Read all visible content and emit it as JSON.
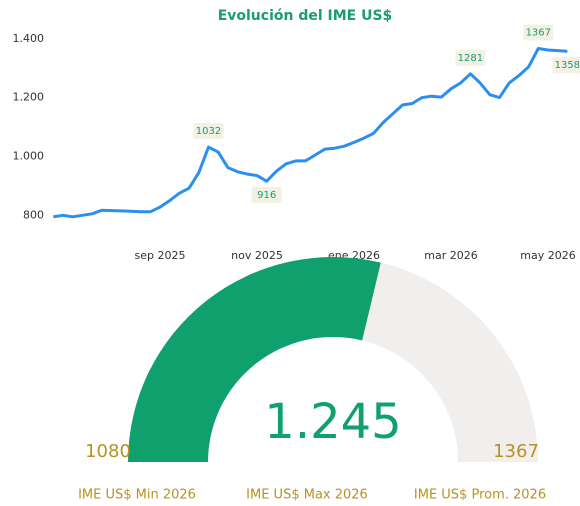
{
  "chart_data": [
    {
      "type": "line",
      "title": "Evolución del IME US$",
      "categories": [
        null,
        null,
        null,
        null,
        null,
        null,
        null,
        null,
        null,
        null,
        null,
        "sep 2025",
        null,
        null,
        null,
        null,
        null,
        null,
        null,
        null,
        null,
        "nov 2025",
        null,
        null,
        null,
        null,
        null,
        null,
        null,
        null,
        null,
        "ene 2026",
        null,
        null,
        null,
        null,
        null,
        null,
        null,
        null,
        null,
        "mar 2026",
        null,
        null,
        null,
        null,
        null,
        null,
        null,
        null,
        null,
        "may 2026",
        null,
        null
      ],
      "series": [
        {
          "name": "IME US$",
          "color": "#2a8ff0",
          "values": [
            795,
            800,
            795,
            800,
            805,
            817,
            816,
            815,
            814,
            812,
            812,
            828,
            850,
            875,
            892,
            945,
            1032,
            1015,
            962,
            948,
            940,
            935,
            916,
            950,
            975,
            985,
            985,
            1005,
            1025,
            1028,
            1035,
            1048,
            1062,
            1078,
            1115,
            1145,
            1175,
            1180,
            1200,
            1205,
            1202,
            1230,
            1250,
            1281,
            1250,
            1210,
            1200,
            1250,
            1275,
            1305,
            1367,
            1362,
            1360,
            1358
          ]
        }
      ],
      "labeled_points": [
        16,
        22,
        43,
        50,
        53
      ],
      "ylim": [
        750,
        1430
      ],
      "yticks": [
        800,
        {
          "value": 1000,
          "label": "1.000"
        },
        {
          "value": 1200,
          "label": "1.200"
        },
        {
          "value": 1400,
          "label": "1.400"
        }
      ],
      "grid": false
    },
    {
      "type": "gauge",
      "value": 1245,
      "value_label": "1.245",
      "min": 1080,
      "max": 1367,
      "color": "#10a06e",
      "track_color": "#f1efed",
      "labels": [
        "IME US$ Min 2026",
        "IME US$ Max 2026",
        "IME US$ Prom. 2026"
      ]
    }
  ]
}
